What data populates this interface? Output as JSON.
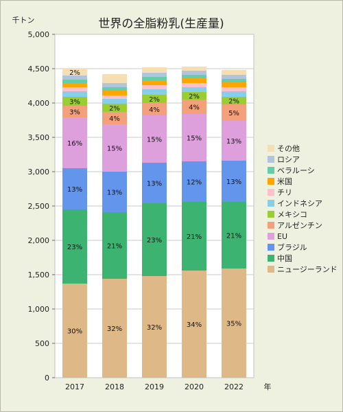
{
  "chart_data": {
    "type": "bar",
    "stacked": true,
    "title": "世界の全脂粉乳(生産量)",
    "y_unit_label": "千トン",
    "x_unit_label": "年",
    "categories": [
      "2017",
      "2018",
      "2019",
      "2020",
      "2022"
    ],
    "ylim": [
      0,
      5000
    ],
    "yticks": [
      "0",
      "500",
      "1,000",
      "1,500",
      "2,000",
      "2,500",
      "3,000",
      "3,500",
      "4,000",
      "4,500",
      "5,000"
    ],
    "grid": true,
    "legend_position": "right",
    "series": [
      {
        "name": "ニュージーランド",
        "color": "#deb887",
        "values": [
          1370,
          1440,
          1480,
          1560,
          1590
        ],
        "labels": [
          "30%",
          "32%",
          "32%",
          "34%",
          "35%"
        ]
      },
      {
        "name": "中国",
        "color": "#3cb371",
        "values": [
          1080,
          970,
          1060,
          1000,
          970
        ],
        "labels": [
          "23%",
          "21%",
          "23%",
          "21%",
          "21%"
        ]
      },
      {
        "name": "ブラジル",
        "color": "#6495ed",
        "values": [
          600,
          590,
          590,
          590,
          600
        ],
        "labels": [
          "13%",
          "13%",
          "13%",
          "12%",
          "13%"
        ]
      },
      {
        "name": "EU",
        "color": "#dda0dd",
        "values": [
          740,
          690,
          690,
          690,
          580
        ],
        "labels": [
          "16%",
          "15%",
          "15%",
          "15%",
          "13%"
        ]
      },
      {
        "name": "アルゼンチン",
        "color": "#f4a07a",
        "values": [
          170,
          180,
          180,
          210,
          240
        ],
        "labels": [
          "3%",
          "4%",
          "4%",
          "4%",
          "5%"
        ]
      },
      {
        "name": "メキシコ",
        "color": "#9acd32",
        "values": [
          130,
          120,
          120,
          110,
          110
        ],
        "labels": [
          "3%",
          "2%",
          "2%",
          "2%",
          "2%"
        ]
      },
      {
        "name": "インドネシア",
        "color": "#87ceeb",
        "values": [
          80,
          70,
          80,
          70,
          80
        ],
        "labels": [
          "",
          "",
          "",
          "",
          ""
        ]
      },
      {
        "name": "チリ",
        "color": "#ffc0cb",
        "values": [
          60,
          50,
          60,
          60,
          60
        ],
        "labels": [
          "",
          "",
          "",
          "",
          ""
        ]
      },
      {
        "name": "米国",
        "color": "#ffa500",
        "values": [
          60,
          70,
          70,
          70,
          70
        ],
        "labels": [
          "",
          "",
          "",
          "",
          ""
        ]
      },
      {
        "name": "ベラルーシ",
        "color": "#66cdaa",
        "values": [
          50,
          50,
          50,
          50,
          50
        ],
        "labels": [
          "",
          "",
          "",
          "",
          ""
        ]
      },
      {
        "name": "ロシア",
        "color": "#b0c4de",
        "values": [
          60,
          60,
          60,
          60,
          60
        ],
        "labels": [
          "",
          "",
          "",
          "",
          ""
        ]
      },
      {
        "name": "その他",
        "color": "#f5deb3",
        "values": [
          100,
          130,
          80,
          60,
          70
        ],
        "labels": [
          "2%",
          "",
          "",
          "",
          ""
        ]
      }
    ]
  }
}
